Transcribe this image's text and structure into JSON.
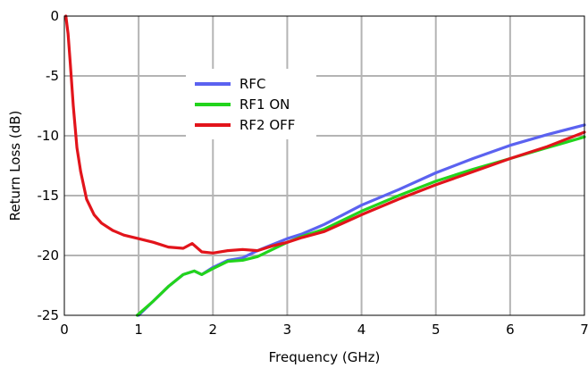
{
  "chart_data": {
    "type": "line",
    "title": "",
    "xlabel": "Frequency (GHz)",
    "ylabel": "Return Loss (dB)",
    "xlim": [
      0,
      7
    ],
    "ylim": [
      -25,
      0
    ],
    "x_ticks": [
      "0",
      "1",
      "2",
      "3",
      "4",
      "5",
      "6",
      "7"
    ],
    "y_ticks": [
      "0",
      "-5",
      "-10",
      "-15",
      "-20",
      "-25"
    ],
    "grid": true,
    "legend_position": "upper-center",
    "series": [
      {
        "name": "RFC",
        "color": "#5b62f0",
        "x": [
          1.0,
          1.2,
          1.4,
          1.6,
          1.75,
          1.85,
          2.0,
          2.2,
          2.4,
          2.6,
          2.8,
          3.0,
          3.2,
          3.5,
          4.0,
          4.5,
          5.0,
          5.5,
          6.0,
          6.5,
          7.0
        ],
        "y": [
          -25.0,
          -23.8,
          -22.6,
          -21.6,
          -21.3,
          -21.6,
          -21.0,
          -20.4,
          -20.2,
          -19.6,
          -19.1,
          -18.6,
          -18.2,
          -17.4,
          -15.8,
          -14.5,
          -13.1,
          -11.9,
          -10.8,
          -9.9,
          -9.1
        ]
      },
      {
        "name": "RF1 ON",
        "color": "#22d41c",
        "x": [
          0.98,
          1.2,
          1.4,
          1.6,
          1.75,
          1.85,
          2.0,
          2.2,
          2.4,
          2.6,
          2.8,
          3.0,
          3.2,
          3.5,
          4.0,
          4.5,
          5.0,
          5.5,
          6.0,
          6.5,
          7.0
        ],
        "y": [
          -25.0,
          -23.8,
          -22.6,
          -21.6,
          -21.3,
          -21.6,
          -21.1,
          -20.5,
          -20.4,
          -20.1,
          -19.5,
          -18.9,
          -18.4,
          -17.8,
          -16.3,
          -15.0,
          -13.8,
          -12.8,
          -11.9,
          -11.0,
          -10.1
        ]
      },
      {
        "name": "RF2 OFF",
        "color": "#e2141b",
        "x": [
          0.02,
          0.05,
          0.08,
          0.12,
          0.17,
          0.22,
          0.3,
          0.4,
          0.5,
          0.65,
          0.8,
          1.0,
          1.2,
          1.4,
          1.6,
          1.72,
          1.85,
          2.0,
          2.2,
          2.4,
          2.6,
          2.8,
          3.0,
          3.2,
          3.5,
          4.0,
          4.5,
          5.0,
          5.5,
          6.0,
          6.5,
          7.0
        ],
        "y": [
          0.0,
          -1.5,
          -4.0,
          -7.5,
          -11.0,
          -13.0,
          -15.3,
          -16.6,
          -17.3,
          -17.9,
          -18.3,
          -18.6,
          -18.9,
          -19.3,
          -19.4,
          -19.0,
          -19.7,
          -19.8,
          -19.6,
          -19.5,
          -19.6,
          -19.2,
          -18.9,
          -18.5,
          -18.0,
          -16.6,
          -15.3,
          -14.1,
          -13.0,
          -11.9,
          -10.9,
          -9.7
        ]
      }
    ]
  }
}
